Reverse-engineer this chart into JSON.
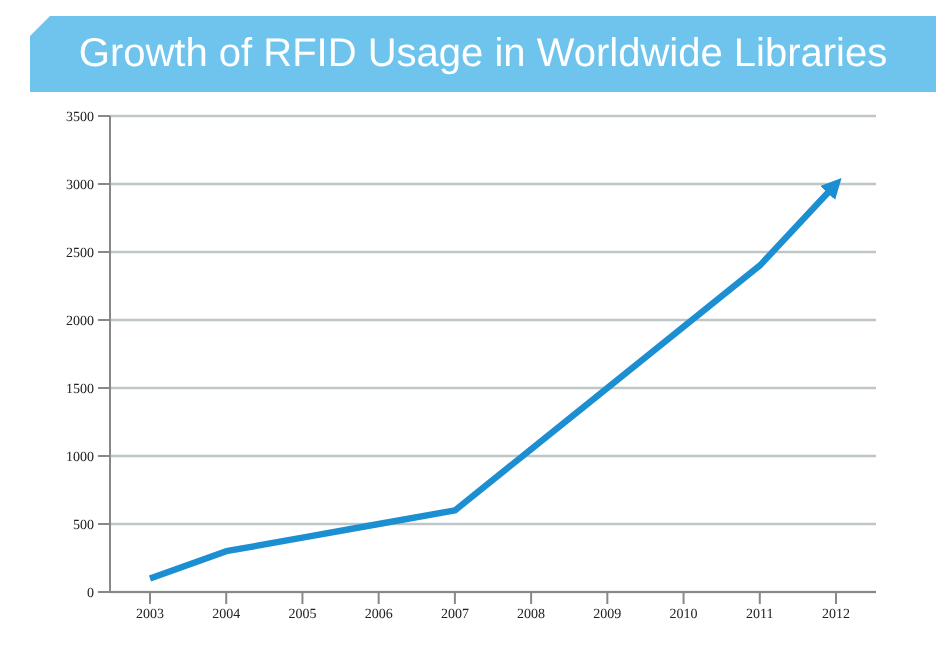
{
  "chart_data": {
    "type": "line",
    "title": "Growth of RFID Usage in Worldwide Libraries",
    "categories": [
      "2003",
      "2004",
      "2005",
      "2006",
      "2007",
      "2008",
      "2009",
      "2010",
      "2011",
      "2012"
    ],
    "series": [
      {
        "color": "#1b8fd2",
        "values": [
          100,
          300,
          400,
          500,
          600,
          1050,
          1500,
          1950,
          2400,
          3000
        ]
      }
    ],
    "ylim": [
      0,
      3500
    ],
    "yticks": [
      0,
      500,
      1000,
      1500,
      2000,
      2500,
      3000,
      3500
    ],
    "grid": "y",
    "marker": "none",
    "line_style": "solid",
    "legend": false
  }
}
